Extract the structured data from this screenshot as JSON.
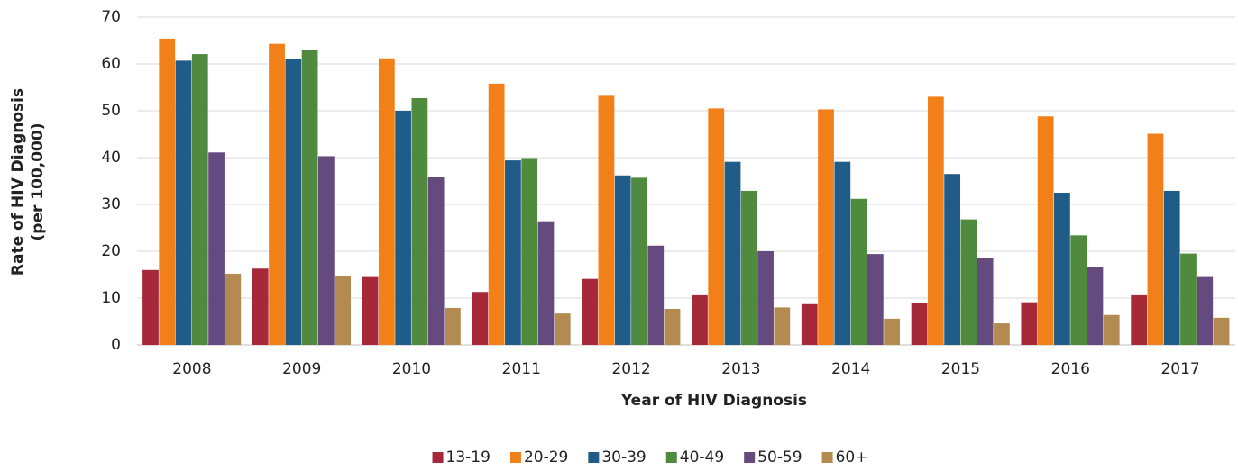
{
  "chart_data": {
    "type": "bar",
    "xlabel": "Year of HIV Diagnosis",
    "ylabel": [
      "Rate of HIV Diagnosis",
      "(per 100,000)"
    ],
    "categories": [
      "2008",
      "2009",
      "2010",
      "2011",
      "2012",
      "2013",
      "2014",
      "2015",
      "2016",
      "2017"
    ],
    "series": [
      {
        "name": "13-19",
        "color": "#a6293a",
        "values": [
          16,
          16.3,
          14.5,
          11.3,
          14.1,
          10.6,
          8.7,
          9,
          9.1,
          10.6
        ]
      },
      {
        "name": "20-29",
        "color": "#f28018",
        "values": [
          65.4,
          64.3,
          61.2,
          55.8,
          53.2,
          50.5,
          50.3,
          53,
          48.8,
          45.1
        ]
      },
      {
        "name": "30-39",
        "color": "#1f5c87",
        "values": [
          60.7,
          61,
          50,
          39.4,
          36.2,
          39.1,
          39.1,
          36.5,
          32.5,
          32.9
        ]
      },
      {
        "name": "40-49",
        "color": "#4f8a3e",
        "values": [
          62.1,
          62.9,
          52.7,
          39.9,
          35.7,
          32.9,
          31.2,
          26.8,
          23.4,
          19.5
        ]
      },
      {
        "name": "50-59",
        "color": "#654a80",
        "values": [
          41.1,
          40.3,
          35.8,
          26.4,
          21.2,
          20,
          19.4,
          18.6,
          16.7,
          14.5
        ]
      },
      {
        "name": "60+",
        "color": "#b38b50",
        "values": [
          15.2,
          14.7,
          7.9,
          6.7,
          7.7,
          8,
          5.6,
          4.6,
          6.4,
          5.8
        ]
      }
    ],
    "ylim": [
      0,
      70
    ],
    "yticks": [
      0,
      10,
      20,
      30,
      40,
      50,
      60,
      70
    ],
    "grid": true,
    "legend": "bottom"
  }
}
